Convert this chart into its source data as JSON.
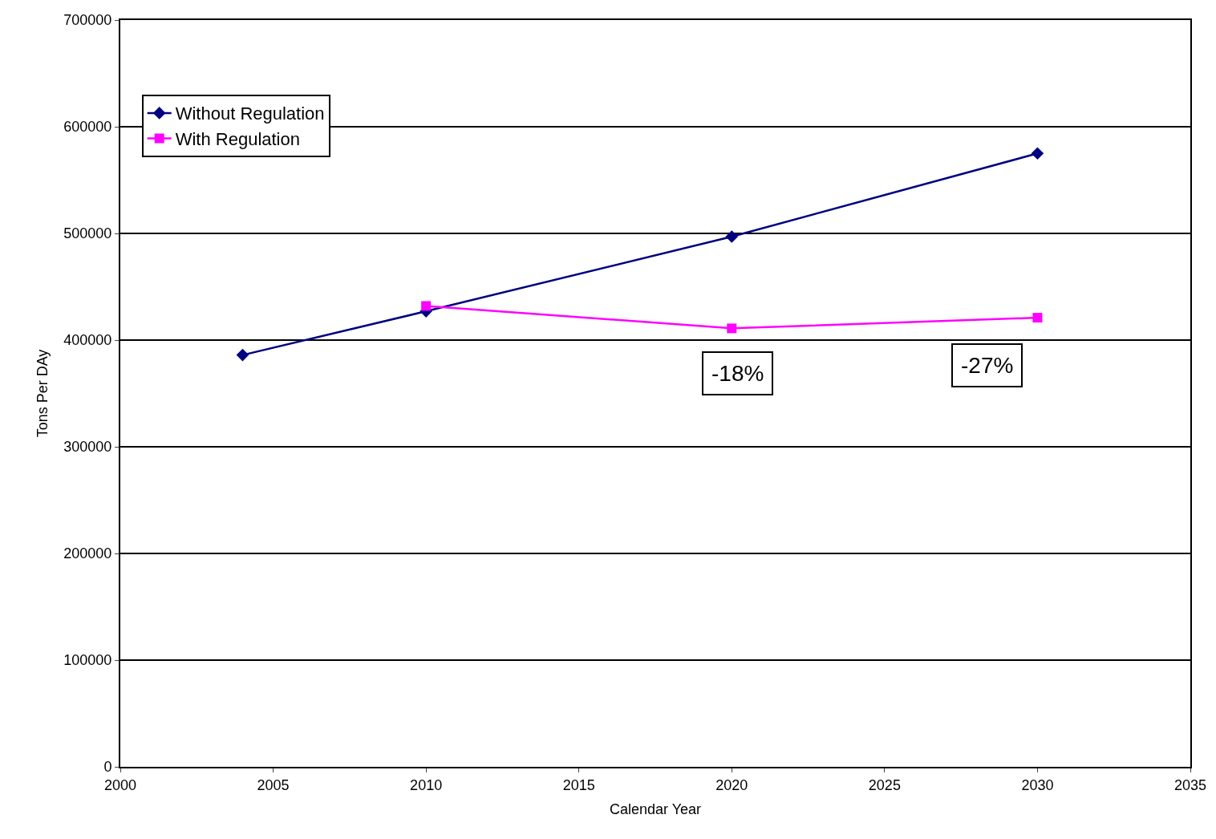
{
  "chart_data": {
    "type": "line",
    "xlabel": "Calendar Year",
    "ylabel": "Tons Per DAy",
    "xlim": [
      2000,
      2035
    ],
    "xticks": [
      2000,
      2005,
      2010,
      2015,
      2020,
      2025,
      2030,
      2035
    ],
    "ylim": [
      0,
      700000
    ],
    "yticks": [
      0,
      100000,
      200000,
      300000,
      400000,
      500000,
      600000,
      700000
    ],
    "grid": "y",
    "legend": "top left",
    "series": [
      {
        "name": "Without Regulation",
        "color": "#000080",
        "marker": "diamond",
        "x": [
          2004,
          2010,
          2020,
          2030
        ],
        "values": [
          386000,
          427000,
          497000,
          575000
        ]
      },
      {
        "name": "With Regulation",
        "color": "#ff00ff",
        "marker": "square",
        "x": [
          2010,
          2020,
          2030
        ],
        "values": [
          432000,
          411000,
          421000
        ]
      }
    ],
    "annotations": [
      "-18%",
      "-27%"
    ]
  }
}
